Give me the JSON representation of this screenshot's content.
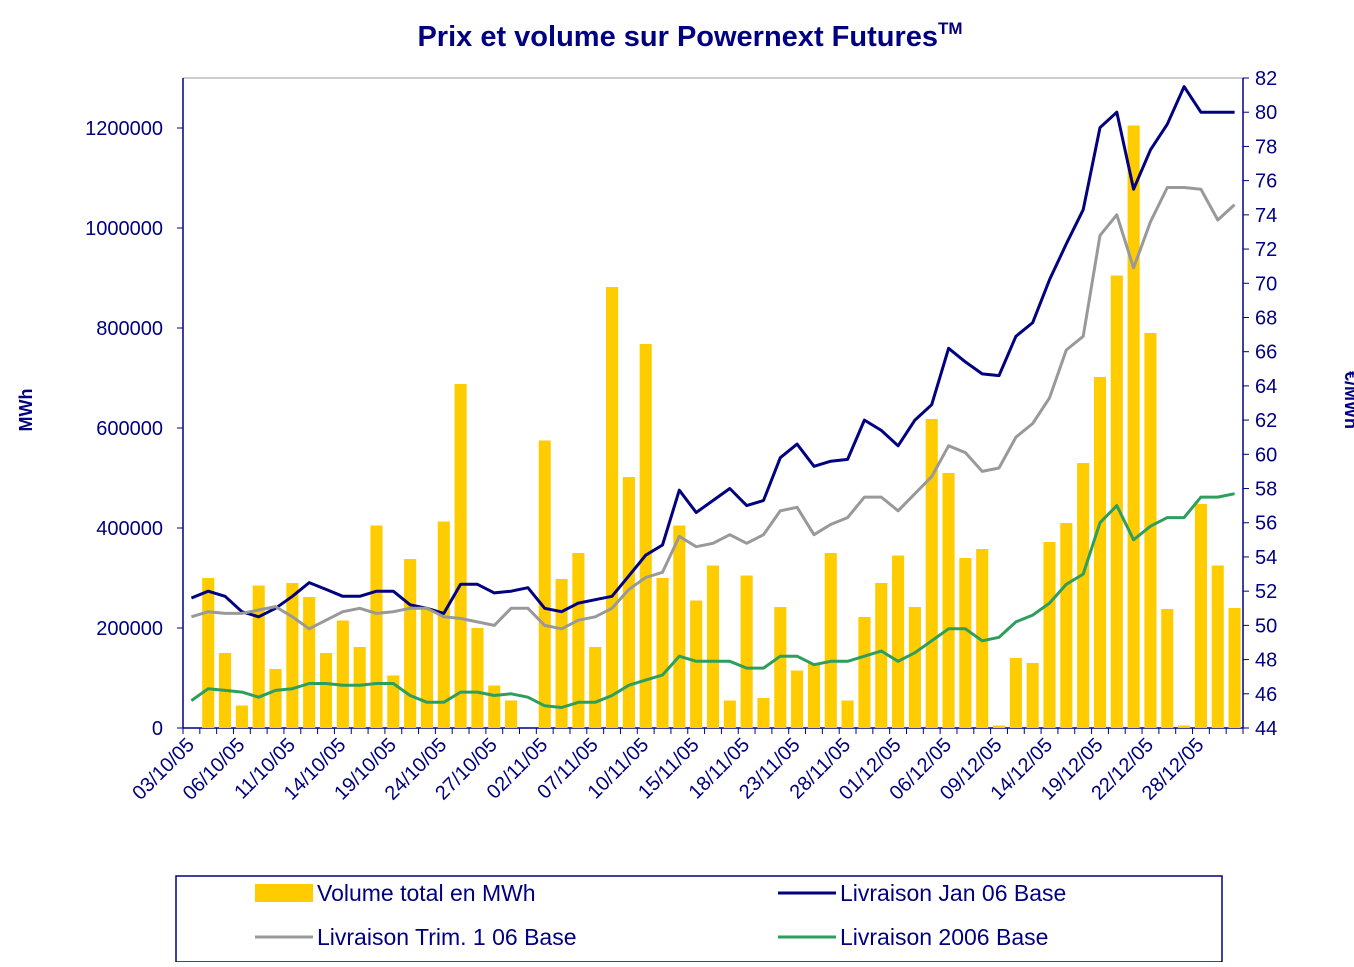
{
  "chart_data": {
    "type": "bar-line",
    "title": "Prix et volume sur Powernext Futures",
    "title_superscript": "TM",
    "ylabel": "MWh",
    "y2label": "€/MWh",
    "ylim": [
      0,
      1300000
    ],
    "yticks": [
      0,
      200000,
      400000,
      600000,
      800000,
      1000000,
      1200000
    ],
    "y2lim": [
      44,
      82
    ],
    "y2ticks": [
      44,
      46,
      48,
      50,
      52,
      54,
      56,
      58,
      60,
      62,
      64,
      66,
      68,
      70,
      72,
      74,
      76,
      78,
      80,
      82
    ],
    "categories": [
      "03/10/05",
      null,
      null,
      "06/10/05",
      null,
      null,
      "11/10/05",
      null,
      null,
      "14/10/05",
      null,
      null,
      "19/10/05",
      null,
      null,
      "24/10/05",
      null,
      null,
      "27/10/05",
      null,
      null,
      "02/11/05",
      null,
      null,
      "07/11/05",
      null,
      null,
      "10/11/05",
      null,
      null,
      "15/11/05",
      null,
      null,
      "18/11/05",
      null,
      null,
      "23/11/05",
      null,
      null,
      "28/11/05",
      null,
      null,
      "01/12/05",
      null,
      null,
      "06/12/05",
      null,
      null,
      "09/12/05",
      null,
      null,
      "14/12/05",
      null,
      null,
      "19/12/05",
      null,
      null,
      "22/12/05",
      null,
      null,
      "28/12/05",
      null,
      null
    ],
    "series": [
      {
        "name": "Volume total en MWh",
        "type": "bar",
        "color": "#ffcc00",
        "values": [
          0,
          300000,
          150000,
          45000,
          285000,
          118000,
          290000,
          262000,
          150000,
          215000,
          162000,
          405000,
          105000,
          338000,
          240000,
          413000,
          688000,
          200000,
          85000,
          55000,
          0,
          575000,
          298000,
          350000,
          162000,
          882000,
          502000,
          768000,
          300000,
          405000,
          255000,
          325000,
          55000,
          305000,
          60000,
          242000,
          115000,
          130000,
          350000,
          55000,
          222000,
          290000,
          345000,
          242000,
          618000,
          510000,
          340000,
          358000,
          5000,
          140000,
          130000,
          372000,
          410000,
          530000,
          702000,
          905000,
          1205000,
          790000,
          238000,
          5000,
          448000,
          325000,
          240000
        ]
      },
      {
        "name": "Livraison Jan 06 Base",
        "type": "line",
        "axis": "y2",
        "color": "#000080",
        "values": [
          51.6,
          52.0,
          51.7,
          50.8,
          50.5,
          51.0,
          51.7,
          52.5,
          52.1,
          51.7,
          51.7,
          52.0,
          52.0,
          51.2,
          51.0,
          50.7,
          52.4,
          52.4,
          51.9,
          52.0,
          52.2,
          51.0,
          50.8,
          51.3,
          51.5,
          51.7,
          52.9,
          54.1,
          54.7,
          57.9,
          56.6,
          57.3,
          58.0,
          57.0,
          57.3,
          59.8,
          60.6,
          59.3,
          59.6,
          59.7,
          62.0,
          61.4,
          60.5,
          62.0,
          62.9,
          66.2,
          65.4,
          64.7,
          64.6,
          66.9,
          67.7,
          70.2,
          72.3,
          74.3,
          79.1,
          80.0,
          75.5,
          77.8,
          79.3,
          81.5,
          80.0,
          80.0,
          80.0
        ]
      },
      {
        "name": "Livraison Trim. 1 06 Base",
        "type": "line",
        "axis": "y2",
        "color": "#999999",
        "values": [
          50.5,
          50.8,
          50.7,
          50.7,
          50.9,
          51.1,
          50.5,
          49.8,
          50.3,
          50.8,
          51.0,
          50.7,
          50.8,
          51.0,
          51.0,
          50.5,
          50.4,
          50.2,
          50.0,
          51.0,
          51.0,
          50.0,
          49.8,
          50.3,
          50.5,
          51.0,
          52.1,
          52.8,
          53.1,
          55.2,
          54.6,
          54.8,
          55.3,
          54.8,
          55.3,
          56.7,
          56.9,
          55.3,
          55.9,
          56.3,
          57.5,
          57.5,
          56.7,
          57.7,
          58.7,
          60.5,
          60.1,
          59.0,
          59.2,
          61.0,
          61.8,
          63.3,
          66.1,
          66.9,
          72.8,
          74.0,
          70.9,
          73.6,
          75.6,
          75.6,
          75.5,
          73.7,
          74.6
        ]
      },
      {
        "name": "Livraison 2006 Base",
        "type": "line",
        "axis": "y2",
        "color": "#2e9e5e",
        "values": [
          45.6,
          46.3,
          46.2,
          46.1,
          45.8,
          46.2,
          46.3,
          46.6,
          46.6,
          46.5,
          46.5,
          46.6,
          46.6,
          45.9,
          45.5,
          45.5,
          46.1,
          46.1,
          45.9,
          46.0,
          45.8,
          45.3,
          45.2,
          45.5,
          45.5,
          45.9,
          46.5,
          46.8,
          47.1,
          48.2,
          47.9,
          47.9,
          47.9,
          47.5,
          47.5,
          48.2,
          48.2,
          47.7,
          47.9,
          47.9,
          48.2,
          48.5,
          47.9,
          48.4,
          49.1,
          49.8,
          49.8,
          49.1,
          49.3,
          50.2,
          50.6,
          51.3,
          52.4,
          53.0,
          56.0,
          57.0,
          55.0,
          55.8,
          56.3,
          56.3,
          57.5,
          57.5,
          57.7
        ]
      }
    ]
  }
}
